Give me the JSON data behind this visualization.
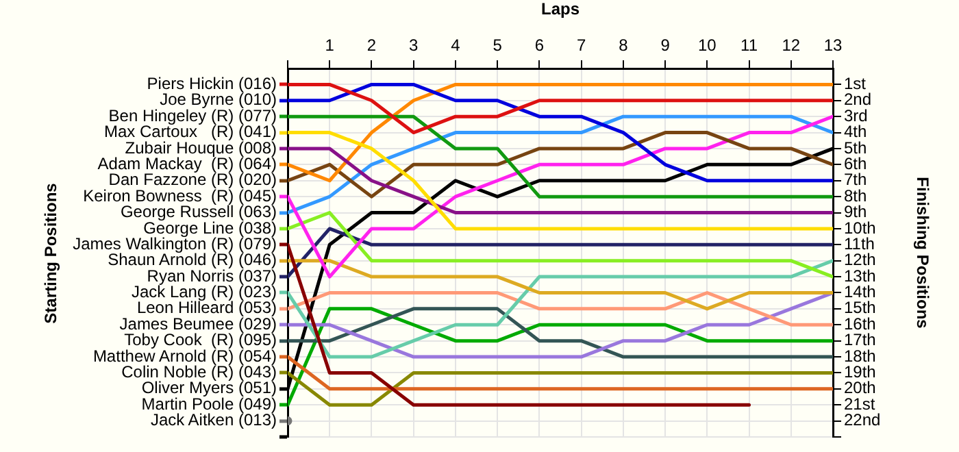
{
  "chart_data": {
    "type": "line",
    "xlabel": "Laps",
    "ylabel": "Finishing Positions",
    "annotations": [
      "Starting Positions"
    ],
    "x": [
      0,
      1,
      2,
      3,
      4,
      5,
      6,
      7,
      8,
      9,
      10,
      11,
      12,
      13
    ],
    "xlim": [
      0,
      13
    ],
    "xticks": [
      {
        "value": 0,
        "label": null
      },
      1,
      2,
      3,
      4,
      5,
      6,
      7,
      8,
      9,
      10,
      11,
      12,
      13
    ],
    "ylim": [
      23,
      0
    ],
    "yticks": [
      {
        "value": 1,
        "label": "1st"
      },
      {
        "value": 2,
        "label": "2nd"
      },
      {
        "value": 3,
        "label": "3rd"
      },
      {
        "value": 4,
        "label": "4th"
      },
      {
        "value": 5,
        "label": "5th"
      },
      {
        "value": 6,
        "label": "6th"
      },
      {
        "value": 7,
        "label": "7th"
      },
      {
        "value": 8,
        "label": "8th"
      },
      {
        "value": 9,
        "label": "9th"
      },
      {
        "value": 10,
        "label": "10th"
      },
      {
        "value": 11,
        "label": "11th"
      },
      {
        "value": 12,
        "label": "12th"
      },
      {
        "value": 13,
        "label": "13th"
      },
      {
        "value": 14,
        "label": "14th"
      },
      {
        "value": 15,
        "label": "15th"
      },
      {
        "value": 16,
        "label": "16th"
      },
      {
        "value": 17,
        "label": "17th"
      },
      {
        "value": 18,
        "label": "18th"
      },
      {
        "value": 19,
        "label": "19th"
      },
      {
        "value": 20,
        "label": "20th"
      },
      {
        "value": 21,
        "label": "21st"
      },
      {
        "value": 22,
        "label": "22nd"
      },
      {
        "value": 23,
        "label": null
      }
    ],
    "grid": true,
    "legend": "left",
    "marker": "none",
    "line_style": "solid",
    "series": [
      {
        "name": "Piers Hickin (016)",
        "color": "#dd1111",
        "values": [
          1,
          1,
          2,
          4,
          3,
          3,
          2,
          2,
          2,
          2,
          2,
          2,
          2,
          2
        ]
      },
      {
        "name": "Joe Byrne (010)",
        "color": "#0000dd",
        "values": [
          2,
          2,
          1,
          1,
          2,
          2,
          3,
          3,
          4,
          6,
          7,
          7,
          7,
          7
        ]
      },
      {
        "name": "Ben Hingeley (R) (077)",
        "color": "#119911",
        "values": [
          3,
          3,
          3,
          3,
          5,
          5,
          8,
          8,
          8,
          8,
          8,
          8,
          8,
          8
        ]
      },
      {
        "name": "Max Cartoux   (R) (041)",
        "color": "#ffdd00",
        "values": [
          4,
          4,
          5,
          7,
          10,
          10,
          10,
          10,
          10,
          10,
          10,
          10,
          10,
          10
        ]
      },
      {
        "name": "Zubair Houque (008)",
        "color": "#881188",
        "values": [
          5,
          5,
          7,
          8,
          9,
          9,
          9,
          9,
          9,
          9,
          9,
          9,
          9,
          9
        ]
      },
      {
        "name": "Adam Mackay  (R) (064)",
        "color": "#ff8800",
        "values": [
          6,
          7,
          4,
          2,
          1,
          1,
          1,
          1,
          1,
          1,
          1,
          1,
          1,
          1
        ]
      },
      {
        "name": "Dan Fazzone (R) (020)",
        "color": "#774411",
        "values": [
          7,
          6,
          8,
          6,
          6,
          6,
          5,
          5,
          5,
          4,
          4,
          5,
          5,
          6
        ]
      },
      {
        "name": "Keiron Bowness  (R) (045)",
        "color": "#ff22ee",
        "values": [
          8,
          13,
          10,
          10,
          8,
          7,
          6,
          6,
          6,
          5,
          5,
          4,
          4,
          3
        ]
      },
      {
        "name": "George Russell (063)",
        "color": "#3399ff",
        "values": [
          9,
          8,
          6,
          5,
          4,
          4,
          4,
          4,
          3,
          3,
          3,
          3,
          3,
          4
        ]
      },
      {
        "name": "George Line (038)",
        "color": "#88ee22",
        "values": [
          10,
          9,
          12,
          12,
          12,
          12,
          12,
          12,
          12,
          12,
          12,
          12,
          12,
          13
        ]
      },
      {
        "name": "James Walkington (R) (079)",
        "color": "#880000",
        "values": [
          11,
          19,
          19,
          21,
          21,
          21,
          21,
          21,
          21,
          21,
          21,
          21,
          null,
          null
        ]
      },
      {
        "name": "Shaun Arnold (R) (046)",
        "color": "#ddaa22",
        "values": [
          12,
          12,
          13,
          13,
          13,
          13,
          14,
          14,
          14,
          14,
          15,
          14,
          14,
          14
        ]
      },
      {
        "name": "Ryan Norris (037)",
        "color": "#222266",
        "values": [
          13,
          10,
          11,
          11,
          11,
          11,
          11,
          11,
          11,
          11,
          11,
          11,
          11,
          11
        ]
      },
      {
        "name": "Jack Lang (R) (023)",
        "color": "#66ccaa",
        "values": [
          14,
          18,
          18,
          17,
          16,
          16,
          13,
          13,
          13,
          13,
          13,
          13,
          13,
          12
        ]
      },
      {
        "name": "Leon Hilleard (053)",
        "color": "#ff9977",
        "values": [
          15,
          14,
          14,
          14,
          14,
          14,
          15,
          15,
          15,
          15,
          14,
          15,
          16,
          16
        ]
      },
      {
        "name": "James Beumee (029)",
        "color": "#9977dd",
        "values": [
          16,
          16,
          17,
          18,
          18,
          18,
          18,
          18,
          17,
          17,
          16,
          16,
          15,
          14
        ]
      },
      {
        "name": "Toby Cook  (R) (095)",
        "color": "#335555",
        "values": [
          17,
          17,
          16,
          15,
          15,
          15,
          17,
          17,
          18,
          18,
          18,
          18,
          18,
          18
        ]
      },
      {
        "name": "Matthew Arnold (R) (054)",
        "color": "#dd6622",
        "values": [
          18,
          20,
          20,
          20,
          20,
          20,
          20,
          20,
          20,
          20,
          20,
          20,
          20,
          20
        ]
      },
      {
        "name": "Colin Noble (R) (043)",
        "color": "#888800",
        "values": [
          19,
          21,
          21,
          19,
          19,
          19,
          19,
          19,
          19,
          19,
          19,
          19,
          19,
          19
        ]
      },
      {
        "name": "Oliver Myers (051)",
        "color": "#000000",
        "values": [
          20,
          11,
          9,
          9,
          7,
          8,
          7,
          7,
          7,
          7,
          6,
          6,
          6,
          5
        ]
      },
      {
        "name": "Martin Poole (049)",
        "color": "#00aa00",
        "values": [
          21,
          15,
          15,
          16,
          17,
          17,
          16,
          16,
          16,
          16,
          17,
          17,
          17,
          17
        ]
      },
      {
        "name": "Jack Aitken (013)",
        "color": "#777777",
        "marker": "circle",
        "values": [
          22,
          null,
          null,
          null,
          null,
          null,
          null,
          null,
          null,
          null,
          null,
          null,
          null,
          null
        ]
      }
    ]
  }
}
